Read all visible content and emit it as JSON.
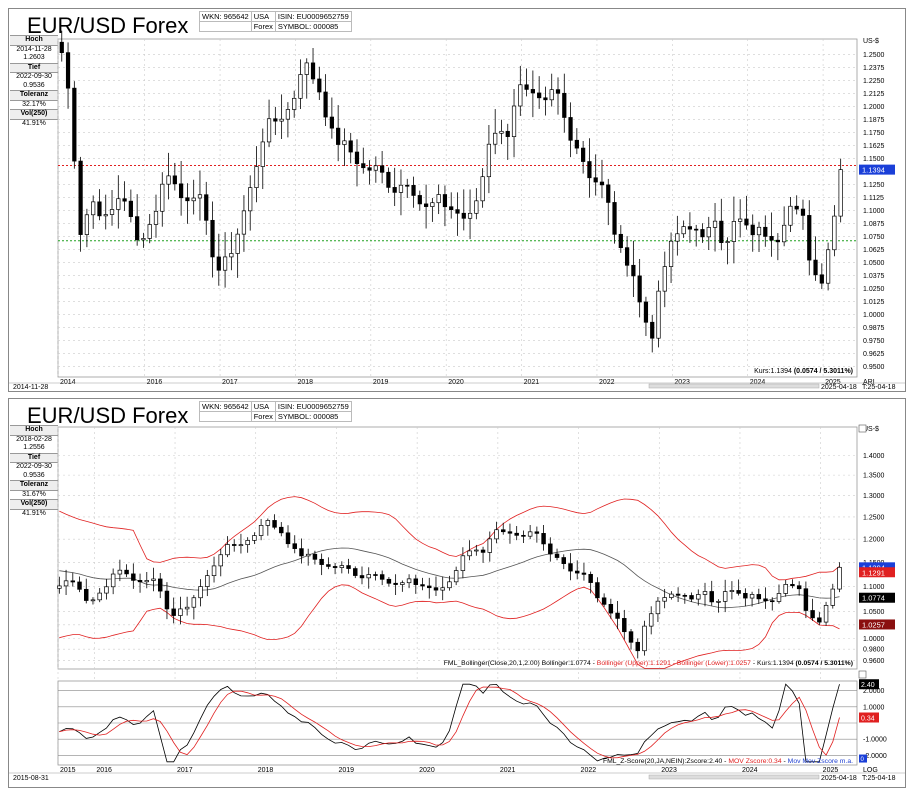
{
  "chart1": {
    "title": "EUR/USD Forex",
    "info": {
      "wkn_label": "WKN: 965642",
      "country": "USA",
      "isin": "ISIN: EU0009652759",
      "type": "Forex",
      "symbol": "SYMBOL: 000085"
    },
    "side": [
      {
        "label": "Hoch",
        "lines": [
          "2014-11-28",
          "1.2603"
        ]
      },
      {
        "label": "Tief",
        "lines": [
          "2022-09-30",
          "0.9536"
        ]
      },
      {
        "label": "Toleranz",
        "lines": [
          "32.17%"
        ]
      },
      {
        "label": "Vol(250)",
        "lines": [
          "41.91%"
        ]
      }
    ],
    "currency": "US-$",
    "legend": "Kurs:1.1394",
    "legend_bold": "(0.0574 / 5.3011%)",
    "badge_last": "1.1394",
    "corner": "ARI",
    "footer_left": "2014-11-28",
    "footer_right": "2025-04-18",
    "footer_corner": "T:25-04-18"
  },
  "chart2": {
    "title": "EUR/USD Forex",
    "info": {
      "wkn_label": "WKN: 965642",
      "country": "USA",
      "isin": "ISIN: EU0009652759",
      "type": "Forex",
      "symbol": "SYMBOL: 000085"
    },
    "side": [
      {
        "label": "Hoch",
        "lines": [
          "2018-02-28",
          "1.2556"
        ]
      },
      {
        "label": "Tief",
        "lines": [
          "2022-09-30",
          "0.9536"
        ]
      },
      {
        "label": "Toleranz",
        "lines": [
          "31.67%"
        ]
      },
      {
        "label": "Vol(250)",
        "lines": [
          "41.91%"
        ]
      }
    ],
    "currency": "US-$",
    "legend_parts": [
      {
        "text": "FML_Bollinger(Close,20,1,2.00) Bollinger:1.0774 - ",
        "color": "#000000"
      },
      {
        "text": "Bollinger (Upper):1.1291",
        "color": "#e02020"
      },
      {
        "text": " - Bollinger (Lower):1.0257",
        "color": "#e02020"
      },
      {
        "text": " - Kurs:1.1394 ",
        "color": "#000000"
      },
      {
        "text": "(0.0574 / 5.3011%)",
        "color": "#000000",
        "bold": true
      }
    ],
    "zlegend_parts": [
      {
        "text": "FML_Z-Score(20,JA,NEIN):Zscore:2.40 - ",
        "color": "#000000"
      },
      {
        "text": "MOV Zscore:0.34",
        "color": "#e02020"
      },
      {
        "text": " - ",
        "color": "#000000"
      },
      {
        "text": "Mov Mov Zscore m.a.",
        "color": "#2040d0"
      }
    ],
    "badges": {
      "last": "1.1394",
      "upper": "1.1291",
      "mid": "1.0774",
      "lower": "1.0257",
      "z": "2.40",
      "mov": "0.34",
      "mm": "0"
    },
    "corner": "LOG",
    "footer_left": "2015-08-31",
    "footer_right": "2025-04-18",
    "footer_corner": "T:25-04-18"
  },
  "chart_data": [
    {
      "type": "candlestick",
      "title": "EUR/USD Forex",
      "ylabel": "US-$",
      "ylim": [
        0.94,
        1.265
      ],
      "y_ticks": [
        0.95,
        0.9625,
        0.975,
        0.9875,
        1.0,
        1.0125,
        1.025,
        1.0375,
        1.05,
        1.0625,
        1.075,
        1.0875,
        1.1,
        1.1125,
        1.125,
        1.1375,
        1.15,
        1.1625,
        1.175,
        1.1875,
        1.2,
        1.2125,
        1.225,
        1.2375,
        1.25
      ],
      "x_ticks": [
        "2014",
        "2016",
        "2017",
        "2018",
        "2019",
        "2020",
        "2021",
        "2022",
        "2023",
        "2024",
        "2025"
      ],
      "reference_lines": [
        {
          "value": 1.1434,
          "color": "#e02020",
          "style": "dotted"
        },
        {
          "value": 1.071,
          "color": "#20a020",
          "style": "dotted"
        }
      ],
      "anchors": [
        {
          "date": "2014.9",
          "close": 1.252
        },
        {
          "date": "2015.0",
          "close": 1.21
        },
        {
          "date": "2015.15",
          "close": 1.08
        },
        {
          "date": "2015.3",
          "close": 1.11
        },
        {
          "date": "2015.5",
          "close": 1.09
        },
        {
          "date": "2015.7",
          "close": 1.12
        },
        {
          "date": "2015.9",
          "close": 1.07
        },
        {
          "date": "2016.1",
          "close": 1.09
        },
        {
          "date": "2016.3",
          "close": 1.14
        },
        {
          "date": "2016.5",
          "close": 1.11
        },
        {
          "date": "2016.7",
          "close": 1.12
        },
        {
          "date": "2016.9",
          "close": 1.06
        },
        {
          "date": "2017.0",
          "close": 1.04
        },
        {
          "date": "2017.2",
          "close": 1.07
        },
        {
          "date": "2017.4",
          "close": 1.12
        },
        {
          "date": "2017.6",
          "close": 1.18
        },
        {
          "date": "2017.8",
          "close": 1.19
        },
        {
          "date": "2017.95",
          "close": 1.2
        },
        {
          "date": "2018.1",
          "close": 1.245
        },
        {
          "date": "2018.3",
          "close": 1.22
        },
        {
          "date": "2018.5",
          "close": 1.17
        },
        {
          "date": "2018.7",
          "close": 1.16
        },
        {
          "date": "2018.9",
          "close": 1.14
        },
        {
          "date": "2019.1",
          "close": 1.14
        },
        {
          "date": "2019.3",
          "close": 1.12
        },
        {
          "date": "2019.5",
          "close": 1.13
        },
        {
          "date": "2019.7",
          "close": 1.1
        },
        {
          "date": "2019.9",
          "close": 1.11
        },
        {
          "date": "2020.1",
          "close": 1.1
        },
        {
          "date": "2020.3",
          "close": 1.09
        },
        {
          "date": "2020.45",
          "close": 1.12
        },
        {
          "date": "2020.6",
          "close": 1.18
        },
        {
          "date": "2020.8",
          "close": 1.17
        },
        {
          "date": "2020.95",
          "close": 1.22
        },
        {
          "date": "2021.1",
          "close": 1.21
        },
        {
          "date": "2021.3",
          "close": 1.2
        },
        {
          "date": "2021.45",
          "close": 1.22
        },
        {
          "date": "2021.6",
          "close": 1.18
        },
        {
          "date": "2021.75",
          "close": 1.16
        },
        {
          "date": "2021.9",
          "close": 1.135
        },
        {
          "date": "2022.1",
          "close": 1.12
        },
        {
          "date": "2022.3",
          "close": 1.06
        },
        {
          "date": "2022.45",
          "close": 1.05
        },
        {
          "date": "2022.6",
          "close": 1.0
        },
        {
          "date": "2022.75",
          "close": 0.98
        },
        {
          "date": "2022.85",
          "close": 1.035
        },
        {
          "date": "2023.0",
          "close": 1.07
        },
        {
          "date": "2023.2",
          "close": 1.09
        },
        {
          "date": "2023.4",
          "close": 1.07
        },
        {
          "date": "2023.55",
          "close": 1.1
        },
        {
          "date": "2023.7",
          "close": 1.06
        },
        {
          "date": "2023.85",
          "close": 1.095
        },
        {
          "date": "2024.0",
          "close": 1.08
        },
        {
          "date": "2024.2",
          "close": 1.08
        },
        {
          "date": "2024.4",
          "close": 1.075
        },
        {
          "date": "2024.55",
          "close": 1.105
        },
        {
          "date": "2024.75",
          "close": 1.09
        },
        {
          "date": "2024.85",
          "close": 1.04
        },
        {
          "date": "2025.0",
          "close": 1.035
        },
        {
          "date": "2025.1",
          "close": 1.08
        },
        {
          "date": "2025.3",
          "close": 1.1394
        }
      ]
    },
    {
      "type": "candlestick",
      "title": "EUR/USD Forex",
      "ylabel": "US-$",
      "log_scale": true,
      "ylim": [
        0.945,
        1.475
      ],
      "y_ticks": [
        0.96,
        0.98,
        1.0,
        1.025,
        1.05,
        1.1,
        1.15,
        1.2,
        1.25,
        1.3,
        1.35,
        1.4
      ],
      "x_ticks": [
        "2015",
        "2016",
        "2017",
        "2018",
        "2019",
        "2020",
        "2021",
        "2022",
        "2023",
        "2024",
        "2025"
      ],
      "overlays": [
        "Bollinger (Upper)",
        "Bollinger",
        "Bollinger (Lower)"
      ],
      "bollinger_last": {
        "upper": 1.1291,
        "mid": 1.0774,
        "lower": 1.0257
      }
    },
    {
      "type": "line",
      "title": "FML_Z-Score(20,JA,NEIN)",
      "ylim": [
        -2.6,
        2.6
      ],
      "y_ticks": [
        -2.0,
        -1.0,
        0,
        1.0,
        2.0
      ],
      "series": [
        {
          "name": "Zscore",
          "last": 2.4
        },
        {
          "name": "MOV Zscore",
          "last": 0.34
        }
      ]
    }
  ]
}
